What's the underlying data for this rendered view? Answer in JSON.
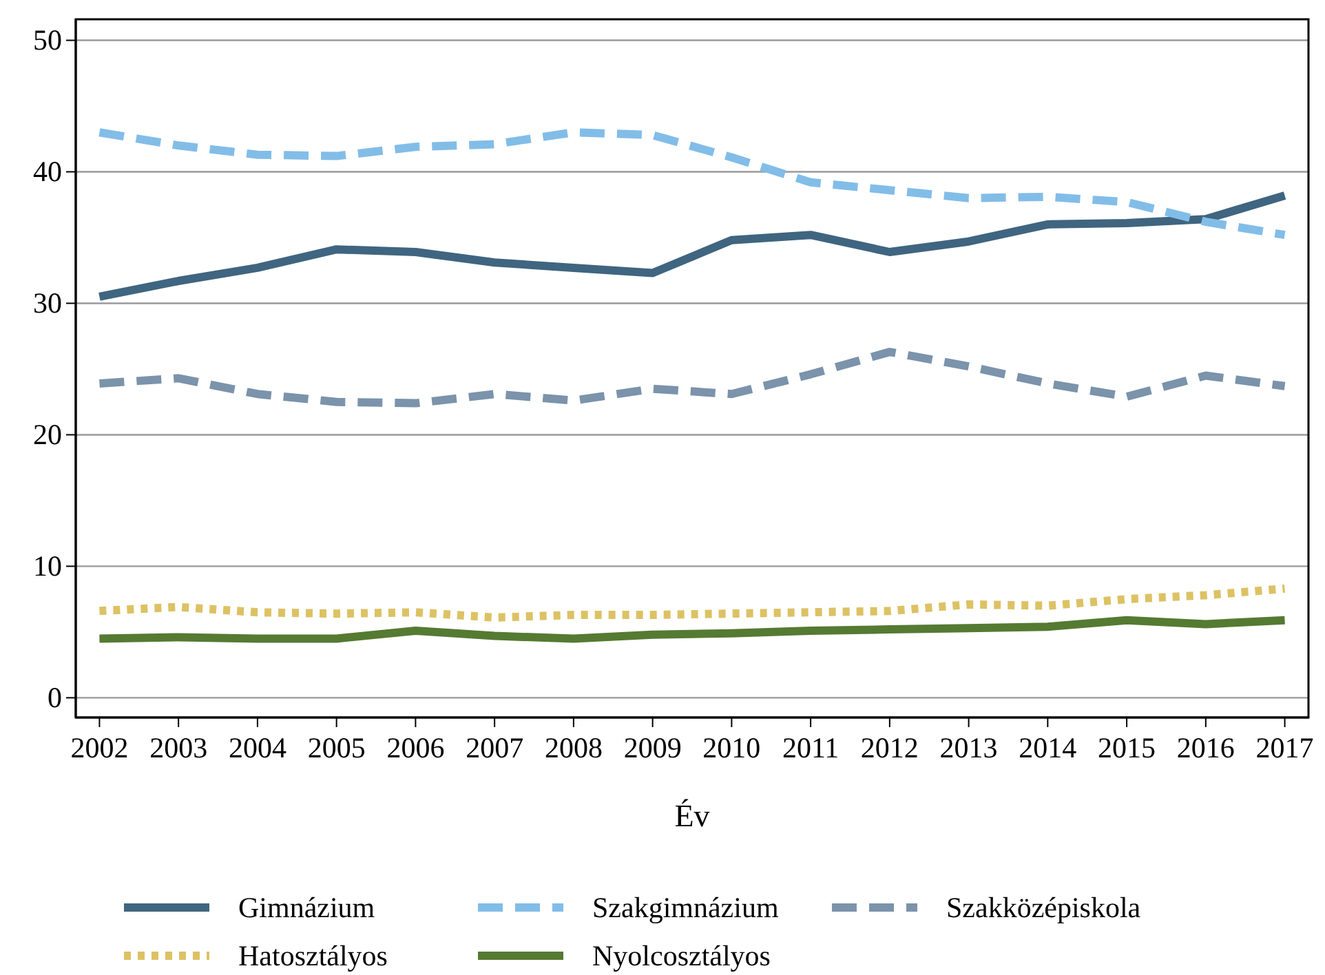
{
  "chart_data": {
    "type": "line",
    "xlabel": "Év",
    "x": [
      2002,
      2003,
      2004,
      2005,
      2006,
      2007,
      2008,
      2009,
      2010,
      2011,
      2012,
      2013,
      2014,
      2015,
      2016,
      2017
    ],
    "xlim": [
      2001.7,
      2017.3
    ],
    "xticks": [
      2002,
      2003,
      2004,
      2005,
      2006,
      2007,
      2008,
      2009,
      2010,
      2011,
      2012,
      2013,
      2014,
      2015,
      2016,
      2017
    ],
    "ylim": [
      -1.5,
      51.6
    ],
    "yticks": [
      0,
      10,
      20,
      30,
      40,
      50
    ],
    "grid": "y",
    "legend": "bottom",
    "series": [
      {
        "name": "Gimnázium",
        "color": "#3f6580",
        "line_style": "solid",
        "values": [
          30.5,
          31.7,
          32.7,
          34.1,
          33.9,
          33.1,
          32.7,
          32.3,
          34.8,
          35.2,
          33.9,
          34.7,
          36.0,
          36.1,
          36.4,
          38.2
        ]
      },
      {
        "name": "Szakgimnázium",
        "color": "#82bde8",
        "line_style": "dashed",
        "values": [
          43.0,
          42.0,
          41.3,
          41.2,
          41.9,
          42.1,
          43.0,
          42.8,
          41.1,
          39.2,
          38.6,
          38.0,
          38.1,
          37.7,
          36.2,
          35.2
        ]
      },
      {
        "name": "Szakközépiskola",
        "color": "#7b93ab",
        "line_style": "dashed",
        "values": [
          23.9,
          24.3,
          23.1,
          22.5,
          22.4,
          23.1,
          22.6,
          23.5,
          23.1,
          24.6,
          26.3,
          25.2,
          23.9,
          22.9,
          24.5,
          23.7
        ]
      },
      {
        "name": "Hatosztályos",
        "color": "#dcc264",
        "line_style": "dotted",
        "values": [
          6.6,
          6.9,
          6.5,
          6.4,
          6.5,
          6.1,
          6.3,
          6.3,
          6.4,
          6.5,
          6.6,
          7.1,
          7.0,
          7.5,
          7.8,
          8.3
        ]
      },
      {
        "name": "Nyolcosztályos",
        "color": "#557a32",
        "line_style": "solid",
        "values": [
          4.5,
          4.6,
          4.5,
          4.5,
          5.1,
          4.7,
          4.5,
          4.8,
          4.9,
          5.1,
          5.2,
          5.3,
          5.4,
          5.9,
          5.6,
          5.9
        ]
      }
    ]
  }
}
